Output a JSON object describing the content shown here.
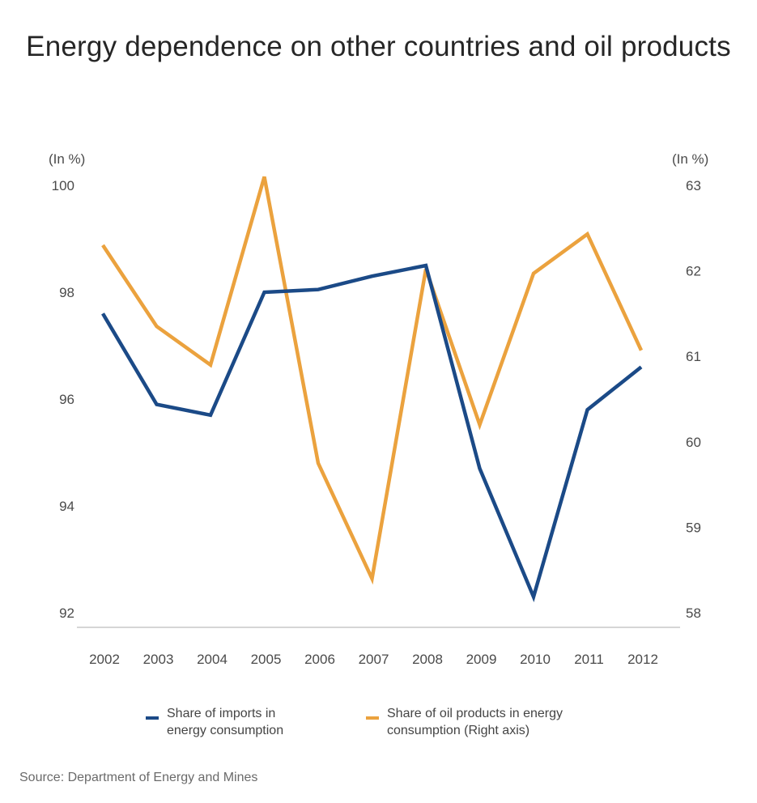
{
  "title": "Energy dependence on other countries and oil products",
  "source": "Source: Department of Energy and Mines",
  "colors": {
    "imports": "#1b4a87",
    "oil": "#eba23e",
    "axis": "#c8c8c8"
  },
  "chart_data": {
    "type": "line",
    "title": "Energy dependence on other countries and oil products",
    "x": [
      "2002",
      "2003",
      "2004",
      "2005",
      "2006",
      "2007",
      "2008",
      "2009",
      "2010",
      "2011",
      "2012"
    ],
    "left_axis": {
      "unit_label": "(In %)",
      "ylim": [
        92,
        100
      ],
      "ticks": [
        "100",
        "98",
        "96",
        "94",
        "92"
      ]
    },
    "right_axis": {
      "unit_label": "(In %)",
      "ylim": [
        58,
        63
      ],
      "ticks": [
        "63",
        "62",
        "61",
        "60",
        "59",
        "58"
      ]
    },
    "series": [
      {
        "name": "Share of imports in energy consumption",
        "axis": "left",
        "values": [
          97.6,
          95.9,
          95.7,
          98.0,
          98.05,
          98.3,
          98.5,
          94.7,
          92.3,
          95.8,
          96.6
        ]
      },
      {
        "name": "Share of oil products in energy consumption (Right axis)",
        "axis": "right",
        "values": [
          62.3,
          61.35,
          60.9,
          63.1,
          59.75,
          58.4,
          62.02,
          60.2,
          61.97,
          62.43,
          61.07
        ]
      }
    ],
    "legend_placement": "bottom",
    "grid": false
  },
  "legend": {
    "imports_line1": "Share of imports in",
    "imports_line2": "energy consumption",
    "oil_line1": "Share of oil products in energy",
    "oil_line2": "consumption (Right axis)"
  }
}
